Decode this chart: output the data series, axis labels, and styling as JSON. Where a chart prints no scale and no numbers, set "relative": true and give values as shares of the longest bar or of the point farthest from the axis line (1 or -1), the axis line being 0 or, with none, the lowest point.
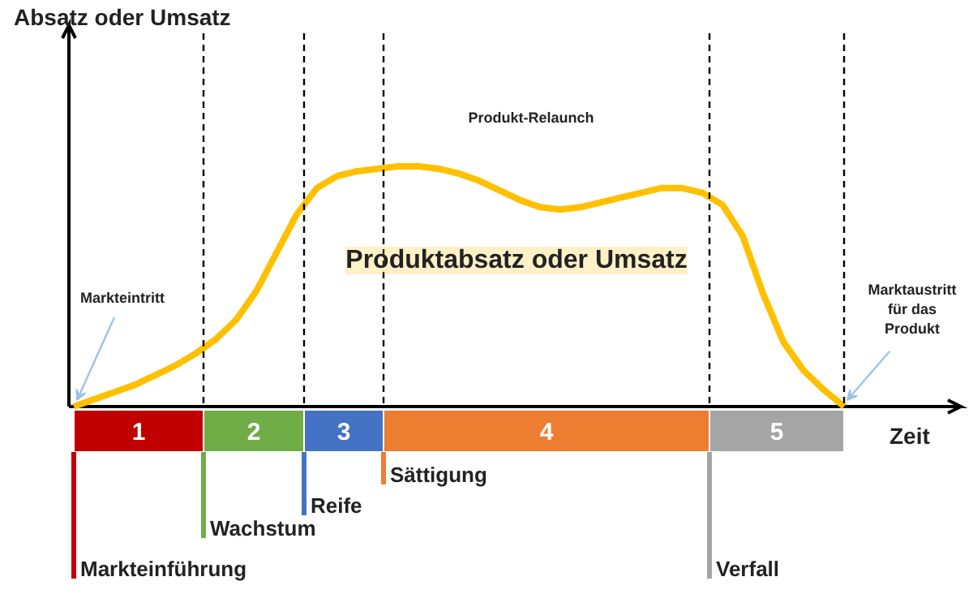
{
  "chart_data": [
    {
      "type": "line",
      "relative": true,
      "ylabel": "Absatz oder Umsatz",
      "xlabel": "Zeit",
      "legend": false,
      "marker": "none",
      "line_style": "solid",
      "categories": [
        null,
        null,
        null,
        null,
        null,
        null,
        null,
        null,
        null,
        null,
        null,
        null,
        null,
        null,
        null,
        null,
        null,
        null,
        null,
        null,
        null,
        null,
        null,
        null,
        null,
        null,
        null,
        null,
        null,
        null,
        null,
        null,
        null,
        null,
        null,
        null,
        null,
        null,
        null
      ],
      "series": [
        {
          "name": "Produktabsatz oder Umsatz",
          "color": "#ffc000",
          "values": [
            0,
            0.03,
            0.06,
            0.09,
            0.13,
            0.17,
            0.22,
            0.28,
            0.36,
            0.48,
            0.64,
            0.8,
            0.91,
            0.96,
            0.98,
            0.99,
            1,
            1,
            0.99,
            0.97,
            0.94,
            0.9,
            0.86,
            0.83,
            0.82,
            0.83,
            0.85,
            0.87,
            0.89,
            0.91,
            0.91,
            0.89,
            0.84,
            0.71,
            0.47,
            0.27,
            0.15,
            0.07,
            0
          ]
        }
      ],
      "annotations": [
        "Markteintritt",
        "Produkt-Relaunch",
        "Marktaustritt\nfür das\nProdukt"
      ]
    },
    {
      "type": "other",
      "categories": [
        "1",
        "2",
        "3",
        "4",
        "5"
      ],
      "colors": [
        "#c00000",
        "#70ad47",
        "#4472c4",
        "#ed7d31",
        "#a5a5a5"
      ],
      "annotations": [
        "Markteinführung",
        "Wachstum",
        "Reife",
        "Sättigung",
        "Verfall"
      ]
    }
  ]
}
